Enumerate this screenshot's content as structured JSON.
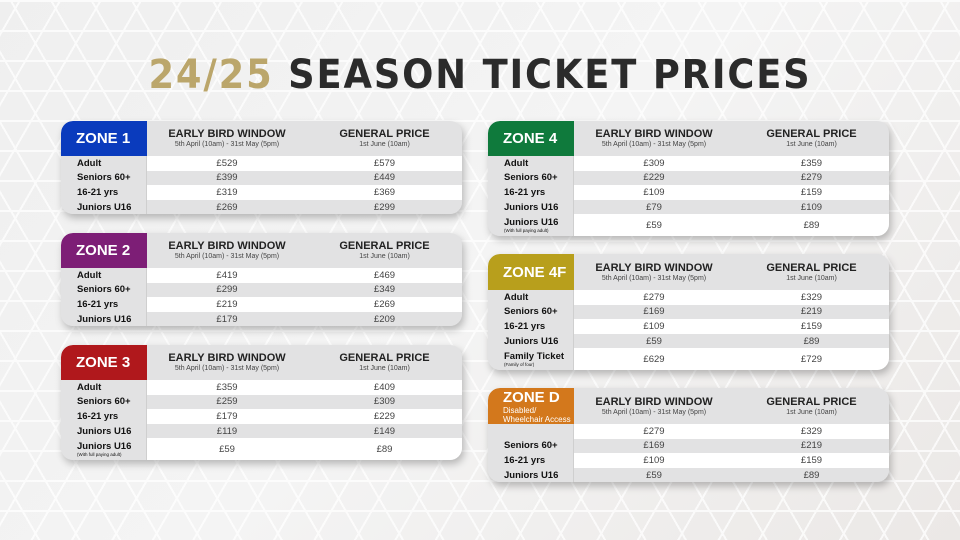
{
  "title": {
    "season": "24/25",
    "rest": "SEASON TICKET PRICES"
  },
  "columns": {
    "early_bird": {
      "label": "EARLY BIRD WINDOW",
      "sub": "5th April (10am) - 31st May (5pm)"
    },
    "general": {
      "label": "GENERAL PRICE",
      "sub": "1st June (10am)"
    }
  },
  "zones": [
    {
      "name": "ZONE 1",
      "color": "#0a3bbd",
      "rows": [
        {
          "label": "Adult",
          "early": "£529",
          "general": "£579"
        },
        {
          "label": "Seniors 60+",
          "early": "£399",
          "general": "£449"
        },
        {
          "label": "16-21 yrs",
          "early": "£319",
          "general": "£369"
        },
        {
          "label": "Juniors U16",
          "early": "£269",
          "general": "£299"
        }
      ]
    },
    {
      "name": "ZONE 2",
      "color": "#7d1e76",
      "rows": [
        {
          "label": "Adult",
          "early": "£419",
          "general": "£469"
        },
        {
          "label": "Seniors 60+",
          "early": "£299",
          "general": "£349"
        },
        {
          "label": "16-21 yrs",
          "early": "£219",
          "general": "£269"
        },
        {
          "label": "Juniors U16",
          "early": "£179",
          "general": "£209"
        }
      ]
    },
    {
      "name": "ZONE 3",
      "color": "#b0181c",
      "rows": [
        {
          "label": "Adult",
          "early": "£359",
          "general": "£409"
        },
        {
          "label": "Seniors 60+",
          "early": "£259",
          "general": "£309"
        },
        {
          "label": "16-21 yrs",
          "early": "£179",
          "general": "£229"
        },
        {
          "label": "Juniors U16",
          "early": "£119",
          "general": "£149"
        },
        {
          "label": "Juniors U16",
          "note": "(With full paying adult)",
          "early": "£59",
          "general": "£89"
        }
      ]
    },
    {
      "name": "ZONE 4",
      "color": "#0f7a3c",
      "rows": [
        {
          "label": "Adult",
          "early": "£309",
          "general": "£359"
        },
        {
          "label": "Seniors 60+",
          "early": "£229",
          "general": "£279"
        },
        {
          "label": "16-21 yrs",
          "early": "£109",
          "general": "£159"
        },
        {
          "label": "Juniors U16",
          "early": "£79",
          "general": "£109"
        },
        {
          "label": "Juniors U16",
          "note": "(With full paying adult)",
          "early": "£59",
          "general": "£89"
        }
      ]
    },
    {
      "name": "ZONE 4F",
      "color": "#b89f1c",
      "rows": [
        {
          "label": "Adult",
          "early": "£279",
          "general": "£329"
        },
        {
          "label": "Seniors 60+",
          "early": "£169",
          "general": "£219"
        },
        {
          "label": "16-21 yrs",
          "early": "£109",
          "general": "£159"
        },
        {
          "label": "Juniors U16",
          "early": "£59",
          "general": "£89"
        },
        {
          "label": "Family Ticket",
          "note": "(Family of four)",
          "early": "£629",
          "general": "£729"
        }
      ]
    },
    {
      "name": "ZONE D",
      "sub": "Disabled/ Wheelchair Access",
      "color": "#d3781c",
      "rows": [
        {
          "label": "",
          "early": "£279",
          "general": "£329"
        },
        {
          "label": "Seniors 60+",
          "early": "£169",
          "general": "£219"
        },
        {
          "label": "16-21 yrs",
          "early": "£109",
          "general": "£159"
        },
        {
          "label": "Juniors U16",
          "early": "£59",
          "general": "£89"
        }
      ]
    }
  ]
}
